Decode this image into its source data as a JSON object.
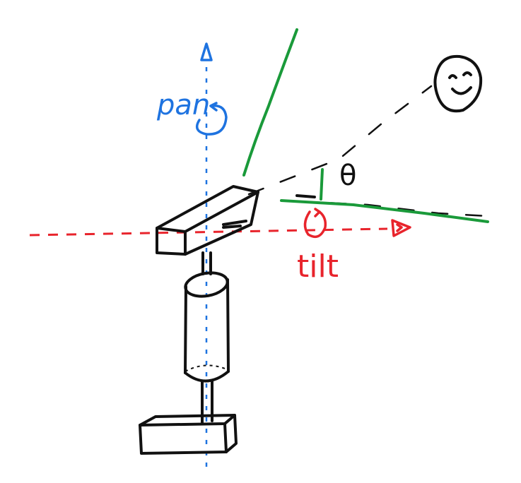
{
  "labels": {
    "pan": "pan",
    "tilt": "tilt",
    "theta": "θ"
  },
  "colors": {
    "pan_axis": "#1e73e0",
    "tilt_axis": "#e8242c",
    "field_of_view": "#1a9a3a",
    "ink": "#111111"
  },
  "icons": {
    "target": "smiley-face-icon",
    "pan_rotation": "rotation-arrow-icon",
    "tilt_rotation": "rotation-arrow-icon"
  }
}
